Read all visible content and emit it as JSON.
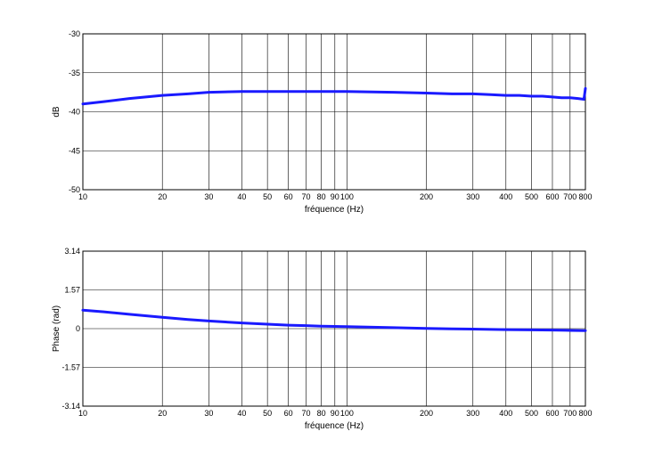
{
  "chart_data": [
    {
      "type": "line",
      "xlabel": "fréquence (Hz)",
      "ylabel": "dB",
      "xscale": "log",
      "xlim": [
        10,
        800
      ],
      "ylim": [
        -50,
        -30
      ],
      "grid": true,
      "x_ticks": [
        "10",
        "20",
        "30",
        "40",
        "50",
        "60",
        "70",
        "80",
        "90",
        "100",
        "200",
        "300",
        "400",
        "500",
        "600",
        "700",
        "800"
      ],
      "y_ticks": [
        "-30",
        "-35",
        "-40",
        "-45",
        "-50"
      ],
      "series_color": "#1a1aff",
      "series": [
        {
          "x": [
            10,
            12,
            15,
            20,
            25,
            30,
            40,
            50,
            60,
            70,
            80,
            90,
            100,
            150,
            200,
            250,
            300,
            350,
            400,
            450,
            500,
            550,
            600,
            650,
            700,
            750,
            790,
            800
          ],
          "y": [
            -39.0,
            -38.7,
            -38.3,
            -37.9,
            -37.7,
            -37.5,
            -37.4,
            -37.4,
            -37.4,
            -37.4,
            -37.4,
            -37.4,
            -37.4,
            -37.5,
            -37.6,
            -37.7,
            -37.7,
            -37.8,
            -37.9,
            -37.9,
            -38.0,
            -38.0,
            -38.1,
            -38.2,
            -38.2,
            -38.3,
            -38.4,
            -37.0
          ]
        }
      ]
    },
    {
      "type": "line",
      "xlabel": "fréquence (Hz)",
      "ylabel": "Phase (rad)",
      "xscale": "log",
      "xlim": [
        10,
        800
      ],
      "ylim": [
        -3.14,
        3.14
      ],
      "grid": true,
      "x_ticks": [
        "10",
        "20",
        "30",
        "40",
        "50",
        "60",
        "70",
        "80",
        "90",
        "100",
        "200",
        "300",
        "400",
        "500",
        "600",
        "700",
        "800"
      ],
      "y_ticks": [
        "3.14",
        "1.57",
        "0",
        "-1.57",
        "-3.14"
      ],
      "series_color": "#1a1aff",
      "series": [
        {
          "x": [
            10,
            12,
            15,
            20,
            25,
            30,
            40,
            50,
            60,
            70,
            80,
            90,
            100,
            150,
            200,
            250,
            300,
            400,
            500,
            600,
            700,
            800
          ],
          "y": [
            0.75,
            0.68,
            0.58,
            0.46,
            0.37,
            0.31,
            0.23,
            0.18,
            0.14,
            0.12,
            0.1,
            0.09,
            0.08,
            0.04,
            0.01,
            -0.01,
            -0.02,
            -0.04,
            -0.05,
            -0.06,
            -0.07,
            -0.08
          ]
        }
      ]
    }
  ]
}
